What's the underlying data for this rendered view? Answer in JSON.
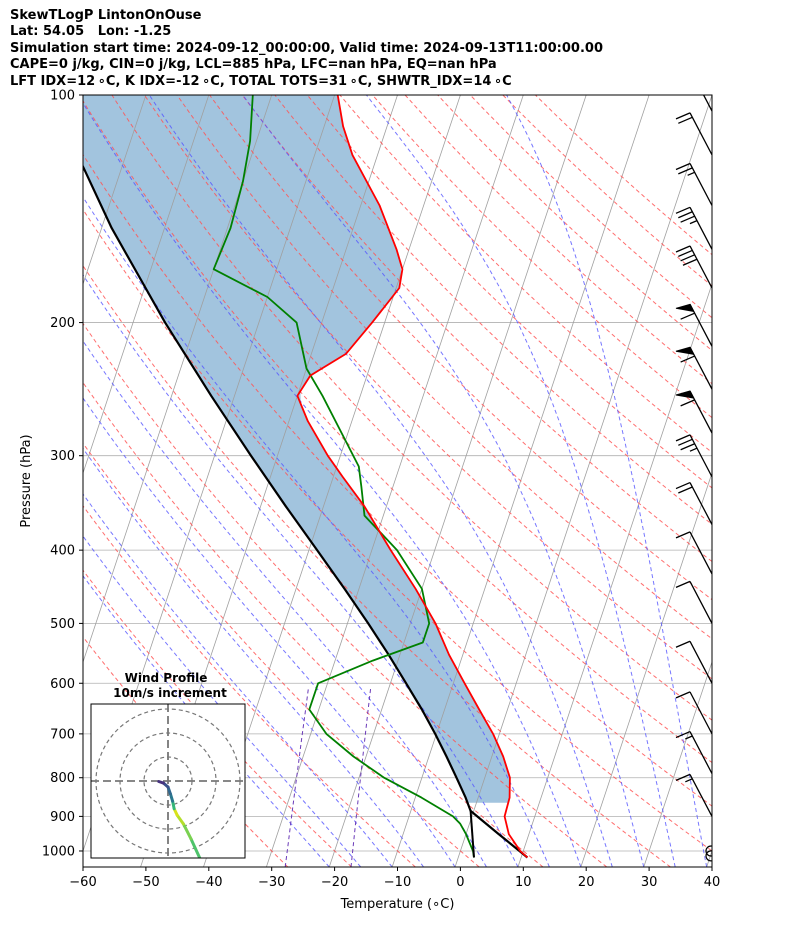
{
  "header": {
    "title": "SkewTLogP LintonOnOuse",
    "location": "Lat: 54.05   Lon: -1.25",
    "times": "Simulation start time: 2024-09-12_00:00:00, Valid time: 2024-09-13T11:00:00.00",
    "indices1": "CAPE=0 j/kg, CIN=0 j/kg, LCL=885 hPa, LFC=nan hPa, EQ=nan hPa",
    "indices2": "LFT IDX=12 ∘C, K IDX=-12 ∘C, TOTAL TOTS=31 ∘C, SHWTR_IDX=14 ∘C"
  },
  "chart_data": [
    {
      "type": "line",
      "name": "skew-t",
      "xlabel": "Temperature (∘C)",
      "ylabel": "Pressure (hPa)",
      "xlim": [
        -60,
        40
      ],
      "ylim": [
        1050,
        100
      ],
      "y_scale": "log",
      "skew_deg_per_decade": 40,
      "x_ticks": [
        "−60",
        "−50",
        "−40",
        "−30",
        "−20",
        "−10",
        "0",
        "10",
        "20",
        "30",
        "40"
      ],
      "x_tick_values": [
        -60,
        -50,
        -40,
        -30,
        -20,
        -10,
        0,
        10,
        20,
        30,
        40
      ],
      "y_ticks": [
        1000,
        900,
        800,
        700,
        600,
        500,
        400,
        300,
        200,
        100
      ],
      "grid": true,
      "colors": {
        "temperature": "#ff0000",
        "dewpoint": "#008000",
        "parcel": "#000000",
        "shade": "#a2c4de",
        "dry_adiabat": "#ff5555",
        "moist_adiabat": "#5555ff",
        "mixing_ratio": "#6a3ab8",
        "isotherm": "#a0a0a0",
        "grid": "#b0b0b0"
      },
      "temperature_profile": [
        {
          "p": 1020,
          "t": 11.0
        },
        {
          "p": 1000,
          "t": 9.5
        },
        {
          "p": 950,
          "t": 6.8
        },
        {
          "p": 900,
          "t": 5.2
        },
        {
          "p": 850,
          "t": 5.0
        },
        {
          "p": 800,
          "t": 4.0
        },
        {
          "p": 750,
          "t": 1.8
        },
        {
          "p": 700,
          "t": -1.0
        },
        {
          "p": 650,
          "t": -4.5
        },
        {
          "p": 600,
          "t": -8.2
        },
        {
          "p": 550,
          "t": -12.2
        },
        {
          "p": 500,
          "t": -16.0
        },
        {
          "p": 450,
          "t": -21.0
        },
        {
          "p": 400,
          "t": -27.0
        },
        {
          "p": 350,
          "t": -33.5
        },
        {
          "p": 320,
          "t": -38.5
        },
        {
          "p": 300,
          "t": -42.0
        },
        {
          "p": 270,
          "t": -47.0
        },
        {
          "p": 250,
          "t": -50.0
        },
        {
          "p": 235,
          "t": -49.0
        },
        {
          "p": 220,
          "t": -44.5
        },
        {
          "p": 200,
          "t": -42.0
        },
        {
          "p": 180,
          "t": -39.5
        },
        {
          "p": 170,
          "t": -40.0
        },
        {
          "p": 160,
          "t": -42.0
        },
        {
          "p": 140,
          "t": -47.0
        },
        {
          "p": 120,
          "t": -54.0
        },
        {
          "p": 110,
          "t": -57.0
        },
        {
          "p": 100,
          "t": -59.5
        }
      ],
      "dewpoint_profile": [
        {
          "p": 1020,
          "t": 2.5
        },
        {
          "p": 1000,
          "t": 2.0
        },
        {
          "p": 950,
          "t": 0.0
        },
        {
          "p": 920,
          "t": -1.5
        },
        {
          "p": 900,
          "t": -3.0
        },
        {
          "p": 850,
          "t": -9.0
        },
        {
          "p": 800,
          "t": -16.0
        },
        {
          "p": 750,
          "t": -22.0
        },
        {
          "p": 700,
          "t": -27.5
        },
        {
          "p": 650,
          "t": -31.5
        },
        {
          "p": 600,
          "t": -31.5
        },
        {
          "p": 560,
          "t": -24.0
        },
        {
          "p": 530,
          "t": -17.0
        },
        {
          "p": 500,
          "t": -17.0
        },
        {
          "p": 450,
          "t": -20.0
        },
        {
          "p": 400,
          "t": -26.0
        },
        {
          "p": 360,
          "t": -33.0
        },
        {
          "p": 330,
          "t": -35.0
        },
        {
          "p": 310,
          "t": -36.5
        },
        {
          "p": 280,
          "t": -41.0
        },
        {
          "p": 250,
          "t": -46.0
        },
        {
          "p": 230,
          "t": -50.0
        },
        {
          "p": 200,
          "t": -54.0
        },
        {
          "p": 185,
          "t": -60.0
        },
        {
          "p": 170,
          "t": -70.0
        },
        {
          "p": 150,
          "t": -69.5
        },
        {
          "p": 130,
          "t": -70.0
        },
        {
          "p": 115,
          "t": -71.0
        },
        {
          "p": 100,
          "t": -73.0
        }
      ],
      "parcel_profile": [
        {
          "p": 1020,
          "t": 11.0
        },
        {
          "p": 1000,
          "t": 9.4
        },
        {
          "p": 950,
          "t": 5.2
        },
        {
          "p": 885,
          "t": -0.5
        },
        {
          "p": 850,
          "t": -2.0
        },
        {
          "p": 800,
          "t": -4.5
        },
        {
          "p": 750,
          "t": -7.2
        },
        {
          "p": 700,
          "t": -10.2
        },
        {
          "p": 650,
          "t": -13.6
        },
        {
          "p": 600,
          "t": -17.5
        },
        {
          "p": 550,
          "t": -21.8
        },
        {
          "p": 500,
          "t": -26.7
        },
        {
          "p": 450,
          "t": -32.3
        },
        {
          "p": 400,
          "t": -38.7
        },
        {
          "p": 350,
          "t": -46.0
        },
        {
          "p": 300,
          "t": -54.2
        },
        {
          "p": 250,
          "t": -63.7
        },
        {
          "p": 200,
          "t": -74.9
        },
        {
          "p": 150,
          "t": -88.4
        },
        {
          "p": 125,
          "t": -96.0
        },
        {
          "p": 100,
          "t": -105.5
        }
      ],
      "wind_barbs": [
        {
          "p": 1015,
          "calm": true
        },
        {
          "p": 1000,
          "calm": true
        },
        {
          "p": 900,
          "full": 1,
          "half": 1,
          "pennants": 0
        },
        {
          "p": 790,
          "full": 1,
          "half": 1,
          "pennants": 0
        },
        {
          "p": 700,
          "full": 1,
          "half": 0,
          "pennants": 0
        },
        {
          "p": 600,
          "full": 1,
          "half": 0,
          "pennants": 0
        },
        {
          "p": 500,
          "full": 1,
          "half": 0,
          "pennants": 0
        },
        {
          "p": 430,
          "full": 1,
          "half": 0,
          "pennants": 0
        },
        {
          "p": 370,
          "full": 2,
          "half": 0,
          "pennants": 0
        },
        {
          "p": 320,
          "full": 3,
          "half": 1,
          "pennants": 0
        },
        {
          "p": 280,
          "full": 1,
          "half": 0,
          "pennants": 1
        },
        {
          "p": 245,
          "full": 1,
          "half": 0,
          "pennants": 1
        },
        {
          "p": 215,
          "full": 1,
          "half": 0,
          "pennants": 1
        },
        {
          "p": 180,
          "full": 4,
          "half": 0,
          "pennants": 0
        },
        {
          "p": 160,
          "full": 3,
          "half": 1,
          "pennants": 0
        },
        {
          "p": 140,
          "full": 2,
          "half": 1,
          "pennants": 0
        },
        {
          "p": 120,
          "full": 2,
          "half": 0,
          "pennants": 0
        },
        {
          "p": 105,
          "full": 1,
          "half": 1,
          "pennants": 0
        }
      ]
    },
    {
      "type": "line",
      "name": "hodograph",
      "title": "Wind Profile",
      "subtitle": "10m/s increment",
      "ring_step_ms": 10,
      "points": [
        {
          "u": 4.2,
          "v": -15.5,
          "c": "#4ec36b"
        },
        {
          "u": 3.0,
          "v": -11.5,
          "c": "#7ad151"
        },
        {
          "u": 2.0,
          "v": -8.5,
          "c": "#b5de2b"
        },
        {
          "u": 1.2,
          "v": -6.8,
          "c": "#d8e219"
        },
        {
          "u": 0.8,
          "v": -5.5,
          "c": "#35b779"
        },
        {
          "u": 0.6,
          "v": -4.0,
          "c": "#2a788e"
        },
        {
          "u": 0.3,
          "v": -2.5,
          "c": "#31688e"
        },
        {
          "u": 0.0,
          "v": -1.2,
          "c": "#3b528b"
        },
        {
          "u": -0.6,
          "v": -0.4,
          "c": "#46327e"
        },
        {
          "u": -1.2,
          "v": -0.1,
          "c": "#440154"
        }
      ]
    }
  ]
}
